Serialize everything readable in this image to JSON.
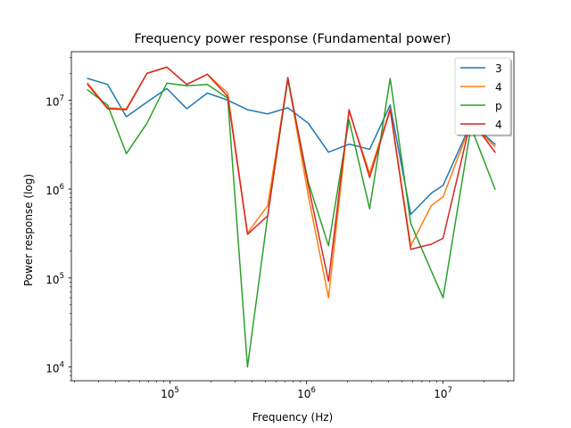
{
  "chart_data": {
    "type": "line",
    "title": "Frequency power response (Fundamental power)",
    "xlabel": "Frequency (Hz)",
    "ylabel": "Power response (log)",
    "xscale": "log",
    "yscale": "log",
    "xlim": [
      19000,
      33000000
    ],
    "ylim": [
      7000,
      35000000
    ],
    "xticks": [
      {
        "value": 100000,
        "base": "10",
        "exp": "5"
      },
      {
        "value": 1000000,
        "base": "10",
        "exp": "6"
      },
      {
        "value": 10000000,
        "base": "10",
        "exp": "7"
      }
    ],
    "yticks": [
      {
        "value": 10000,
        "base": "10",
        "exp": "4"
      },
      {
        "value": 100000,
        "base": "10",
        "exp": "5"
      },
      {
        "value": 1000000,
        "base": "10",
        "exp": "6"
      },
      {
        "value": 10000000,
        "base": "10",
        "exp": "7"
      }
    ],
    "grid": false,
    "legend_position": "top-right",
    "x": [
      25000,
      35000,
      48000,
      68000,
      95000,
      133000,
      188000,
      265000,
      370000,
      520000,
      730000,
      1030000,
      1450000,
      2050000,
      2900000,
      4100000,
      5800000,
      8200000,
      10000000,
      16000000,
      24000000
    ],
    "series": [
      {
        "name": "3",
        "color": "#1f77b4",
        "values": [
          17500000,
          15000000,
          6500000,
          9500000,
          13500000,
          8000000,
          12000000,
          10000000,
          7800000,
          7000000,
          8200000,
          5500000,
          2600000,
          3200000,
          2800000,
          8800000,
          520000,
          900000,
          1100000,
          5500000,
          3200000
        ]
      },
      {
        "name": "4",
        "color": "#ff7f0e",
        "values": [
          15500000,
          8200000,
          8000000,
          20000000,
          23500000,
          15000000,
          19500000,
          12000000,
          320000,
          650000,
          17500000,
          850000,
          60000,
          7500000,
          1500000,
          8000000,
          230000,
          650000,
          820000,
          5500000,
          3000000
        ]
      },
      {
        "name": "p",
        "color": "#2ca02c",
        "values": [
          13000000,
          8800000,
          2500000,
          5500000,
          15500000,
          14500000,
          15000000,
          10500000,
          10000,
          500000,
          17000000,
          1200000,
          230000,
          6000000,
          600000,
          17500000,
          410000,
          120000,
          60000,
          5000000,
          1000000
        ]
      },
      {
        "name": "4",
        "color": "#d62728",
        "values": [
          15000000,
          8000000,
          7800000,
          20000000,
          23500000,
          15000000,
          19500000,
          11000000,
          310000,
          500000,
          18000000,
          1100000,
          92000,
          7800000,
          1350000,
          7800000,
          210000,
          240000,
          280000,
          6000000,
          2600000
        ]
      }
    ]
  }
}
